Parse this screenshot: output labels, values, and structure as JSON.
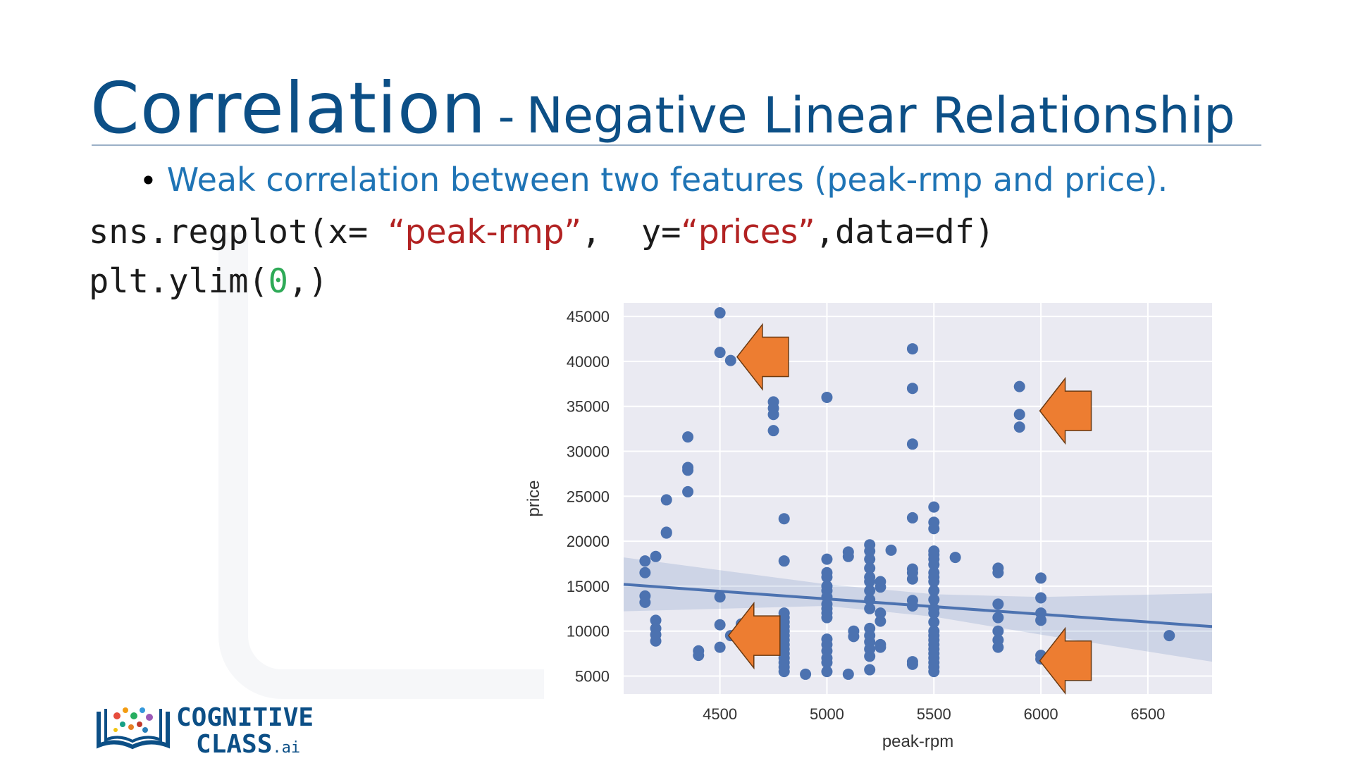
{
  "slide": {
    "title_main": "Correlation",
    "title_sep": "-",
    "title_sub": "Negative Linear Relationship",
    "bullet_text": "Weak  correlation between two features (peak-rmp and price).",
    "code": {
      "line1_prefix": "sns.regplot(x= ",
      "line1_xstr": "“peak-rmp”",
      "line1_mid": ",  y=",
      "line1_ystr": "“prices”",
      "line1_suffix": ",data=df)",
      "line2_prefix": "plt.ylim(",
      "line2_num": "0",
      "line2_suffix": ",)"
    }
  },
  "logo": {
    "line1": "COGNITIVE",
    "line2": "CLASS",
    "suffix": ".ai"
  },
  "colors": {
    "title": "#0c4f86",
    "bullet": "#1f74b5",
    "string": "#b22222",
    "number": "#2eaa57",
    "plot_bg": "#eaeaf2",
    "points": "#4c72b0",
    "arrow": "#ed7d31"
  },
  "chart_data": {
    "type": "scatter",
    "xlabel": "peak-rpm",
    "ylabel": "price",
    "xlim": [
      4050,
      6800
    ],
    "ylim": [
      3000,
      46500
    ],
    "xticks": [
      4500,
      5000,
      5500,
      6000,
      6500
    ],
    "yticks": [
      5000,
      10000,
      15000,
      20000,
      25000,
      30000,
      35000,
      40000,
      45000
    ],
    "grid": true,
    "regression_line": {
      "x": [
        4050,
        6800
      ],
      "y": [
        15200,
        10500
      ]
    },
    "confidence_band": {
      "x": [
        4050,
        5000,
        5500,
        6000,
        6800
      ],
      "upper": [
        18200,
        15200,
        14100,
        13800,
        14200
      ],
      "lower": [
        12200,
        12800,
        11600,
        9600,
        6600
      ]
    },
    "points": [
      [
        4150,
        17800
      ],
      [
        4150,
        16500
      ],
      [
        4150,
        13900
      ],
      [
        4150,
        13200
      ],
      [
        4200,
        18300
      ],
      [
        4200,
        11200
      ],
      [
        4200,
        10300
      ],
      [
        4200,
        9600
      ],
      [
        4200,
        8900
      ],
      [
        4250,
        24600
      ],
      [
        4250,
        21000
      ],
      [
        4250,
        20900
      ],
      [
        4350,
        31600
      ],
      [
        4350,
        28200
      ],
      [
        4350,
        27900
      ],
      [
        4350,
        25500
      ],
      [
        4400,
        7800
      ],
      [
        4400,
        7300
      ],
      [
        4500,
        45400
      ],
      [
        4500,
        41000
      ],
      [
        4500,
        13800
      ],
      [
        4500,
        10700
      ],
      [
        4500,
        8200
      ],
      [
        4550,
        40100
      ],
      [
        4550,
        9500
      ],
      [
        4600,
        10800
      ],
      [
        4750,
        35500
      ],
      [
        4750,
        34800
      ],
      [
        4750,
        34100
      ],
      [
        4750,
        32300
      ],
      [
        4800,
        22500
      ],
      [
        4800,
        17800
      ],
      [
        4800,
        12000
      ],
      [
        4800,
        11500
      ],
      [
        4800,
        11000
      ],
      [
        4800,
        10500
      ],
      [
        4800,
        10000
      ],
      [
        4800,
        9500
      ],
      [
        4800,
        9000
      ],
      [
        4800,
        8500
      ],
      [
        4800,
        8000
      ],
      [
        4800,
        7500
      ],
      [
        4800,
        7000
      ],
      [
        4800,
        6500
      ],
      [
        4800,
        6000
      ],
      [
        4800,
        5500
      ],
      [
        4900,
        5200
      ],
      [
        5000,
        36000
      ],
      [
        5000,
        18000
      ],
      [
        5000,
        16500
      ],
      [
        5000,
        16000
      ],
      [
        5000,
        15000
      ],
      [
        5000,
        14500
      ],
      [
        5000,
        13800
      ],
      [
        5000,
        13000
      ],
      [
        5000,
        12500
      ],
      [
        5000,
        12000
      ],
      [
        5000,
        11500
      ],
      [
        5000,
        9100
      ],
      [
        5000,
        8500
      ],
      [
        5000,
        7800
      ],
      [
        5000,
        7000
      ],
      [
        5000,
        6500
      ],
      [
        5000,
        5500
      ],
      [
        5100,
        18800
      ],
      [
        5100,
        18300
      ],
      [
        5100,
        5200
      ],
      [
        5125,
        10000
      ],
      [
        5125,
        9400
      ],
      [
        5200,
        19600
      ],
      [
        5200,
        18900
      ],
      [
        5200,
        18000
      ],
      [
        5200,
        17000
      ],
      [
        5200,
        16000
      ],
      [
        5200,
        15500
      ],
      [
        5200,
        14500
      ],
      [
        5200,
        13500
      ],
      [
        5200,
        12500
      ],
      [
        5200,
        10300
      ],
      [
        5200,
        9500
      ],
      [
        5200,
        8800
      ],
      [
        5200,
        8000
      ],
      [
        5200,
        7200
      ],
      [
        5200,
        5700
      ],
      [
        5250,
        15500
      ],
      [
        5250,
        14900
      ],
      [
        5250,
        12000
      ],
      [
        5250,
        11100
      ],
      [
        5250,
        8500
      ],
      [
        5250,
        8200
      ],
      [
        5300,
        19000
      ],
      [
        5400,
        41400
      ],
      [
        5400,
        37000
      ],
      [
        5400,
        30800
      ],
      [
        5400,
        22600
      ],
      [
        5400,
        16900
      ],
      [
        5400,
        16500
      ],
      [
        5400,
        15800
      ],
      [
        5400,
        13400
      ],
      [
        5400,
        12800
      ],
      [
        5400,
        6600
      ],
      [
        5400,
        6300
      ],
      [
        5500,
        23800
      ],
      [
        5500,
        22100
      ],
      [
        5500,
        21400
      ],
      [
        5500,
        18900
      ],
      [
        5500,
        18500
      ],
      [
        5500,
        18000
      ],
      [
        5500,
        17400
      ],
      [
        5500,
        16500
      ],
      [
        5500,
        16000
      ],
      [
        5500,
        15500
      ],
      [
        5500,
        14500
      ],
      [
        5500,
        13500
      ],
      [
        5500,
        12500
      ],
      [
        5500,
        12000
      ],
      [
        5500,
        11000
      ],
      [
        5500,
        10000
      ],
      [
        5500,
        9500
      ],
      [
        5500,
        9000
      ],
      [
        5500,
        8500
      ],
      [
        5500,
        8000
      ],
      [
        5500,
        7500
      ],
      [
        5500,
        7000
      ],
      [
        5500,
        6500
      ],
      [
        5500,
        6000
      ],
      [
        5500,
        5500
      ],
      [
        5600,
        18200
      ],
      [
        5800,
        17000
      ],
      [
        5800,
        16500
      ],
      [
        5800,
        13000
      ],
      [
        5800,
        11500
      ],
      [
        5800,
        10000
      ],
      [
        5800,
        9000
      ],
      [
        5800,
        8200
      ],
      [
        5900,
        37200
      ],
      [
        5900,
        34100
      ],
      [
        5900,
        32700
      ],
      [
        6000,
        15900
      ],
      [
        6000,
        13700
      ],
      [
        6000,
        12000
      ],
      [
        6000,
        11200
      ],
      [
        6000,
        7300
      ],
      [
        6000,
        6900
      ],
      [
        6600,
        9500
      ]
    ],
    "annotations": [
      {
        "type": "arrow",
        "direction": "left",
        "at": [
          4580,
          40500
        ]
      },
      {
        "type": "arrow",
        "direction": "left",
        "at": [
          5995,
          34500
        ]
      },
      {
        "type": "arrow",
        "direction": "left",
        "at": [
          4540,
          9500
        ]
      },
      {
        "type": "arrow",
        "direction": "left",
        "at": [
          5995,
          6700
        ]
      }
    ]
  }
}
